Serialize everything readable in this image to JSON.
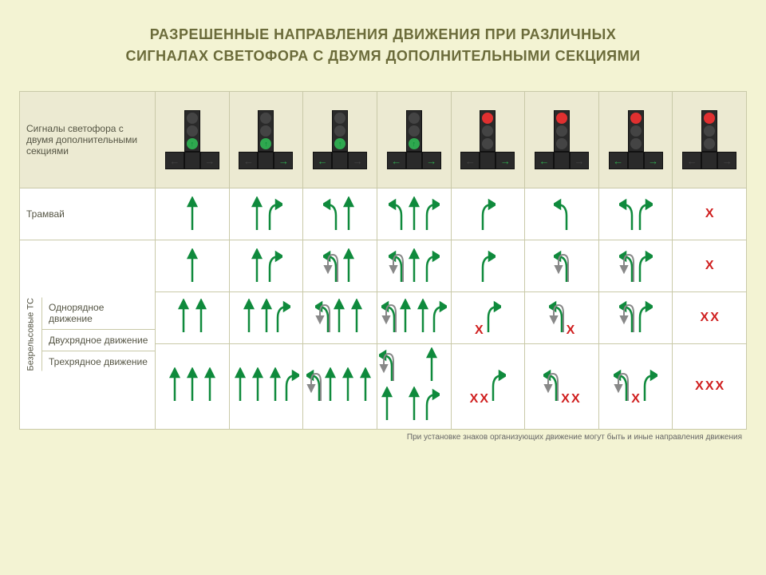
{
  "title_line1": "РАЗРЕШЕННЫЕ НАПРАВЛЕНИЯ ДВИЖЕНИЯ ПРИ РАЗЛИЧНЫХ",
  "title_line2": "СИГНАЛАХ СВЕТОФОРА С ДВУМЯ ДОПОЛНИТЕЛЬНЫМИ СЕКЦИЯМИ",
  "header_label": "Сигналы светофора с двумя дополнительными секциями",
  "row_tram": "Трамвай",
  "vgroup_label": "Безрельсовые ТС",
  "row_1lane": "Однорядное движение",
  "row_2lane": "Двухрядное движение",
  "row_3lane": "Трехрядное движение",
  "footnote": "При установке знаков организующих движение могут быть и иные направления движения",
  "colors": {
    "page_bg": "#f3f3d3",
    "header_bg": "#ecead2",
    "title_color": "#6b6b3a",
    "border": "#c9c9a8",
    "arrow_green": "#0f8a3c",
    "arrow_gray": "#888888",
    "x_red": "#d02020",
    "tl_body": "#2a2a2a",
    "tl_off": "#444444",
    "tl_red": "#e03030",
    "tl_green": "#2fa84f"
  },
  "lights": [
    {
      "main": "green",
      "left": "off",
      "right": "off"
    },
    {
      "main": "green",
      "left": "off",
      "right": "green"
    },
    {
      "main": "green",
      "left": "green",
      "right": "off"
    },
    {
      "main": "green",
      "left": "green",
      "right": "green"
    },
    {
      "main": "red",
      "left": "off",
      "right": "green"
    },
    {
      "main": "red",
      "left": "green",
      "right": "off"
    },
    {
      "main": "red",
      "left": "green",
      "right": "green"
    },
    {
      "main": "red",
      "left": "off",
      "right": "off"
    }
  ],
  "tram": [
    [
      "S"
    ],
    [
      "S",
      "R"
    ],
    [
      "L",
      "S"
    ],
    [
      "L",
      "S",
      "R"
    ],
    [
      "R"
    ],
    [
      "L"
    ],
    [
      "L",
      "R"
    ],
    [
      "X"
    ]
  ],
  "lane1": [
    [
      "S"
    ],
    [
      "S",
      "R"
    ],
    [
      "L",
      "U",
      "S"
    ],
    [
      "L",
      "U",
      "S",
      "R"
    ],
    [
      "R"
    ],
    [
      "L",
      "U"
    ],
    [
      "L",
      "U",
      "R"
    ],
    [
      "X"
    ]
  ],
  "lane2": [
    [
      [
        "S"
      ],
      [
        "S"
      ]
    ],
    [
      [
        "S"
      ],
      [
        "S",
        "R"
      ]
    ],
    [
      [
        "L",
        "U",
        "S"
      ],
      [
        "S"
      ]
    ],
    [
      [
        "L",
        "U",
        "S"
      ],
      [
        "S",
        "R"
      ]
    ],
    [
      [
        "X"
      ],
      [
        "R"
      ]
    ],
    [
      [
        "L",
        "U"
      ],
      [
        "X"
      ]
    ],
    [
      [
        "L",
        "U"
      ],
      [
        "R"
      ]
    ],
    [
      [
        "X"
      ],
      [
        "X"
      ]
    ]
  ],
  "lane3": [
    [
      [
        "S"
      ],
      [
        "S"
      ],
      [
        "S"
      ]
    ],
    [
      [
        "S"
      ],
      [
        "S"
      ],
      [
        "S",
        "R"
      ]
    ],
    [
      [
        "L",
        "U",
        "S"
      ],
      [
        "S"
      ],
      [
        "S"
      ]
    ],
    [
      [
        "L",
        "U",
        "S"
      ],
      [
        "S"
      ],
      [
        "S",
        "R"
      ]
    ],
    [
      [
        "X"
      ],
      [
        "X"
      ],
      [
        "R"
      ]
    ],
    [
      [
        "L",
        "U"
      ],
      [
        "X"
      ],
      [
        "X"
      ]
    ],
    [
      [
        "L",
        "U"
      ],
      [
        "X"
      ],
      [
        "R"
      ]
    ],
    [
      [
        "X"
      ],
      [
        "X"
      ],
      [
        "X"
      ]
    ]
  ]
}
